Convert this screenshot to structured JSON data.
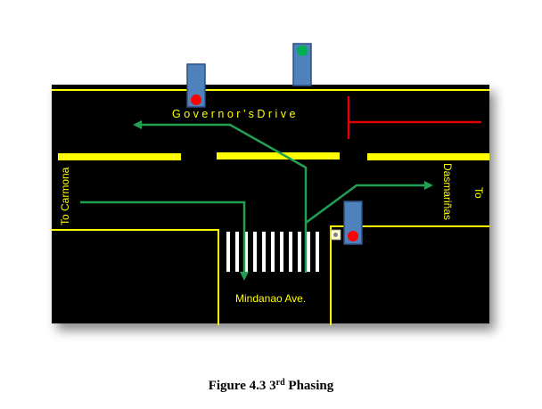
{
  "labels": {
    "road_top": "G o v e r n o r ’ s   D r i v e",
    "to_carmona": "To Carmona",
    "to_prefix": "To",
    "dasmarinas": "Dasmariñas",
    "mindanao": "Mindanao Ave."
  },
  "caption": {
    "prefix": "Figure 4.3 3",
    "sup": "rd",
    "suffix": " Phasing"
  },
  "colors": {
    "road": "#000000",
    "lane_yellow": "#ffff00",
    "arrow_green": "#22a052",
    "stop_red": "#e00000",
    "signal_body": "#4f81bd",
    "signal_red": "#ff0000",
    "signal_green": "#00b050"
  },
  "signals": [
    {
      "name": "signal-north-west",
      "lit": "red"
    },
    {
      "name": "signal-north-east",
      "lit": "green"
    },
    {
      "name": "signal-south-east",
      "lit": "red"
    }
  ]
}
